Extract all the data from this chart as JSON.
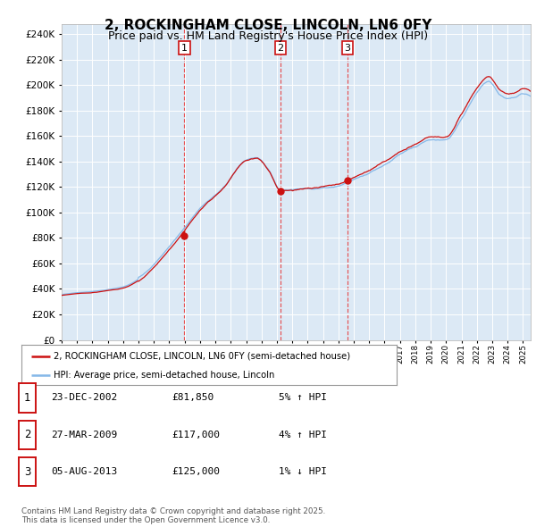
{
  "title": "2, ROCKINGHAM CLOSE, LINCOLN, LN6 0FY",
  "subtitle": "Price paid vs. HM Land Registry's House Price Index (HPI)",
  "ytick_values": [
    0,
    20000,
    40000,
    60000,
    80000,
    100000,
    120000,
    140000,
    160000,
    180000,
    200000,
    220000,
    240000
  ],
  "ylim": [
    0,
    248000
  ],
  "xlim_start": 1995.0,
  "xlim_end": 2025.5,
  "background_color": "#dce9f5",
  "grid_color": "#ffffff",
  "sale_dates": [
    2002.98,
    2009.24,
    2013.59
  ],
  "sale_prices": [
    81850,
    117000,
    125000
  ],
  "sale_labels": [
    "1",
    "2",
    "3"
  ],
  "vline_color": "#e84040",
  "hpi_line_color": "#85b8e8",
  "price_line_color": "#cc1111",
  "legend_entries": [
    "2, ROCKINGHAM CLOSE, LINCOLN, LN6 0FY (semi-detached house)",
    "HPI: Average price, semi-detached house, Lincoln"
  ],
  "table_data": [
    [
      "1",
      "23-DEC-2002",
      "£81,850",
      "5% ↑ HPI"
    ],
    [
      "2",
      "27-MAR-2009",
      "£117,000",
      "4% ↑ HPI"
    ],
    [
      "3",
      "05-AUG-2013",
      "£125,000",
      "1% ↓ HPI"
    ]
  ],
  "footer_text": "Contains HM Land Registry data © Crown copyright and database right 2025.\nThis data is licensed under the Open Government Licence v3.0.",
  "title_fontsize": 11,
  "subtitle_fontsize": 9
}
